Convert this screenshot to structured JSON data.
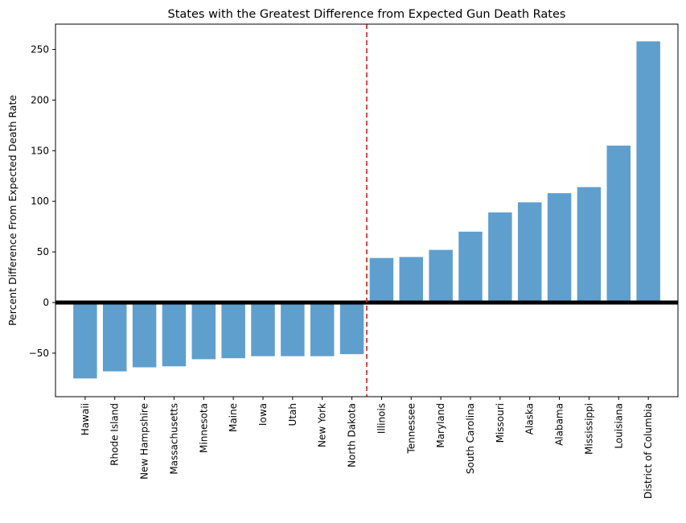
{
  "chart_data": {
    "type": "bar",
    "title": "States with the Greatest Difference from Expected Gun Death Rates",
    "xlabel": "",
    "ylabel": "Percent Difference From Expected Death Rate",
    "categories": [
      "Hawaii",
      "Rhode Island",
      "New Hampshire",
      "Massachusetts",
      "Minnesota",
      "Maine",
      "Iowa",
      "Utah",
      "New York",
      "North Dakota",
      "Illinois",
      "Tennessee",
      "Maryland",
      "South Carolina",
      "Missouri",
      "Alaska",
      "Alabama",
      "Mississippi",
      "Louisiana",
      "District of Columbia"
    ],
    "values": [
      -75,
      -68,
      -64,
      -63,
      -56,
      -55,
      -53,
      -53,
      -53,
      -51,
      44,
      45,
      52,
      70,
      89,
      99,
      108,
      114,
      155,
      258
    ],
    "ylim": [
      -93,
      275
    ],
    "yticks": [
      -50,
      0,
      50,
      100,
      150,
      200,
      250
    ],
    "bar_color": "#5f9fce",
    "zero_line_color": "#000000",
    "divider_line_color": "#e41a1c",
    "divider_position": "between North Dakota and Illinois",
    "grid": false,
    "legend": "none"
  }
}
